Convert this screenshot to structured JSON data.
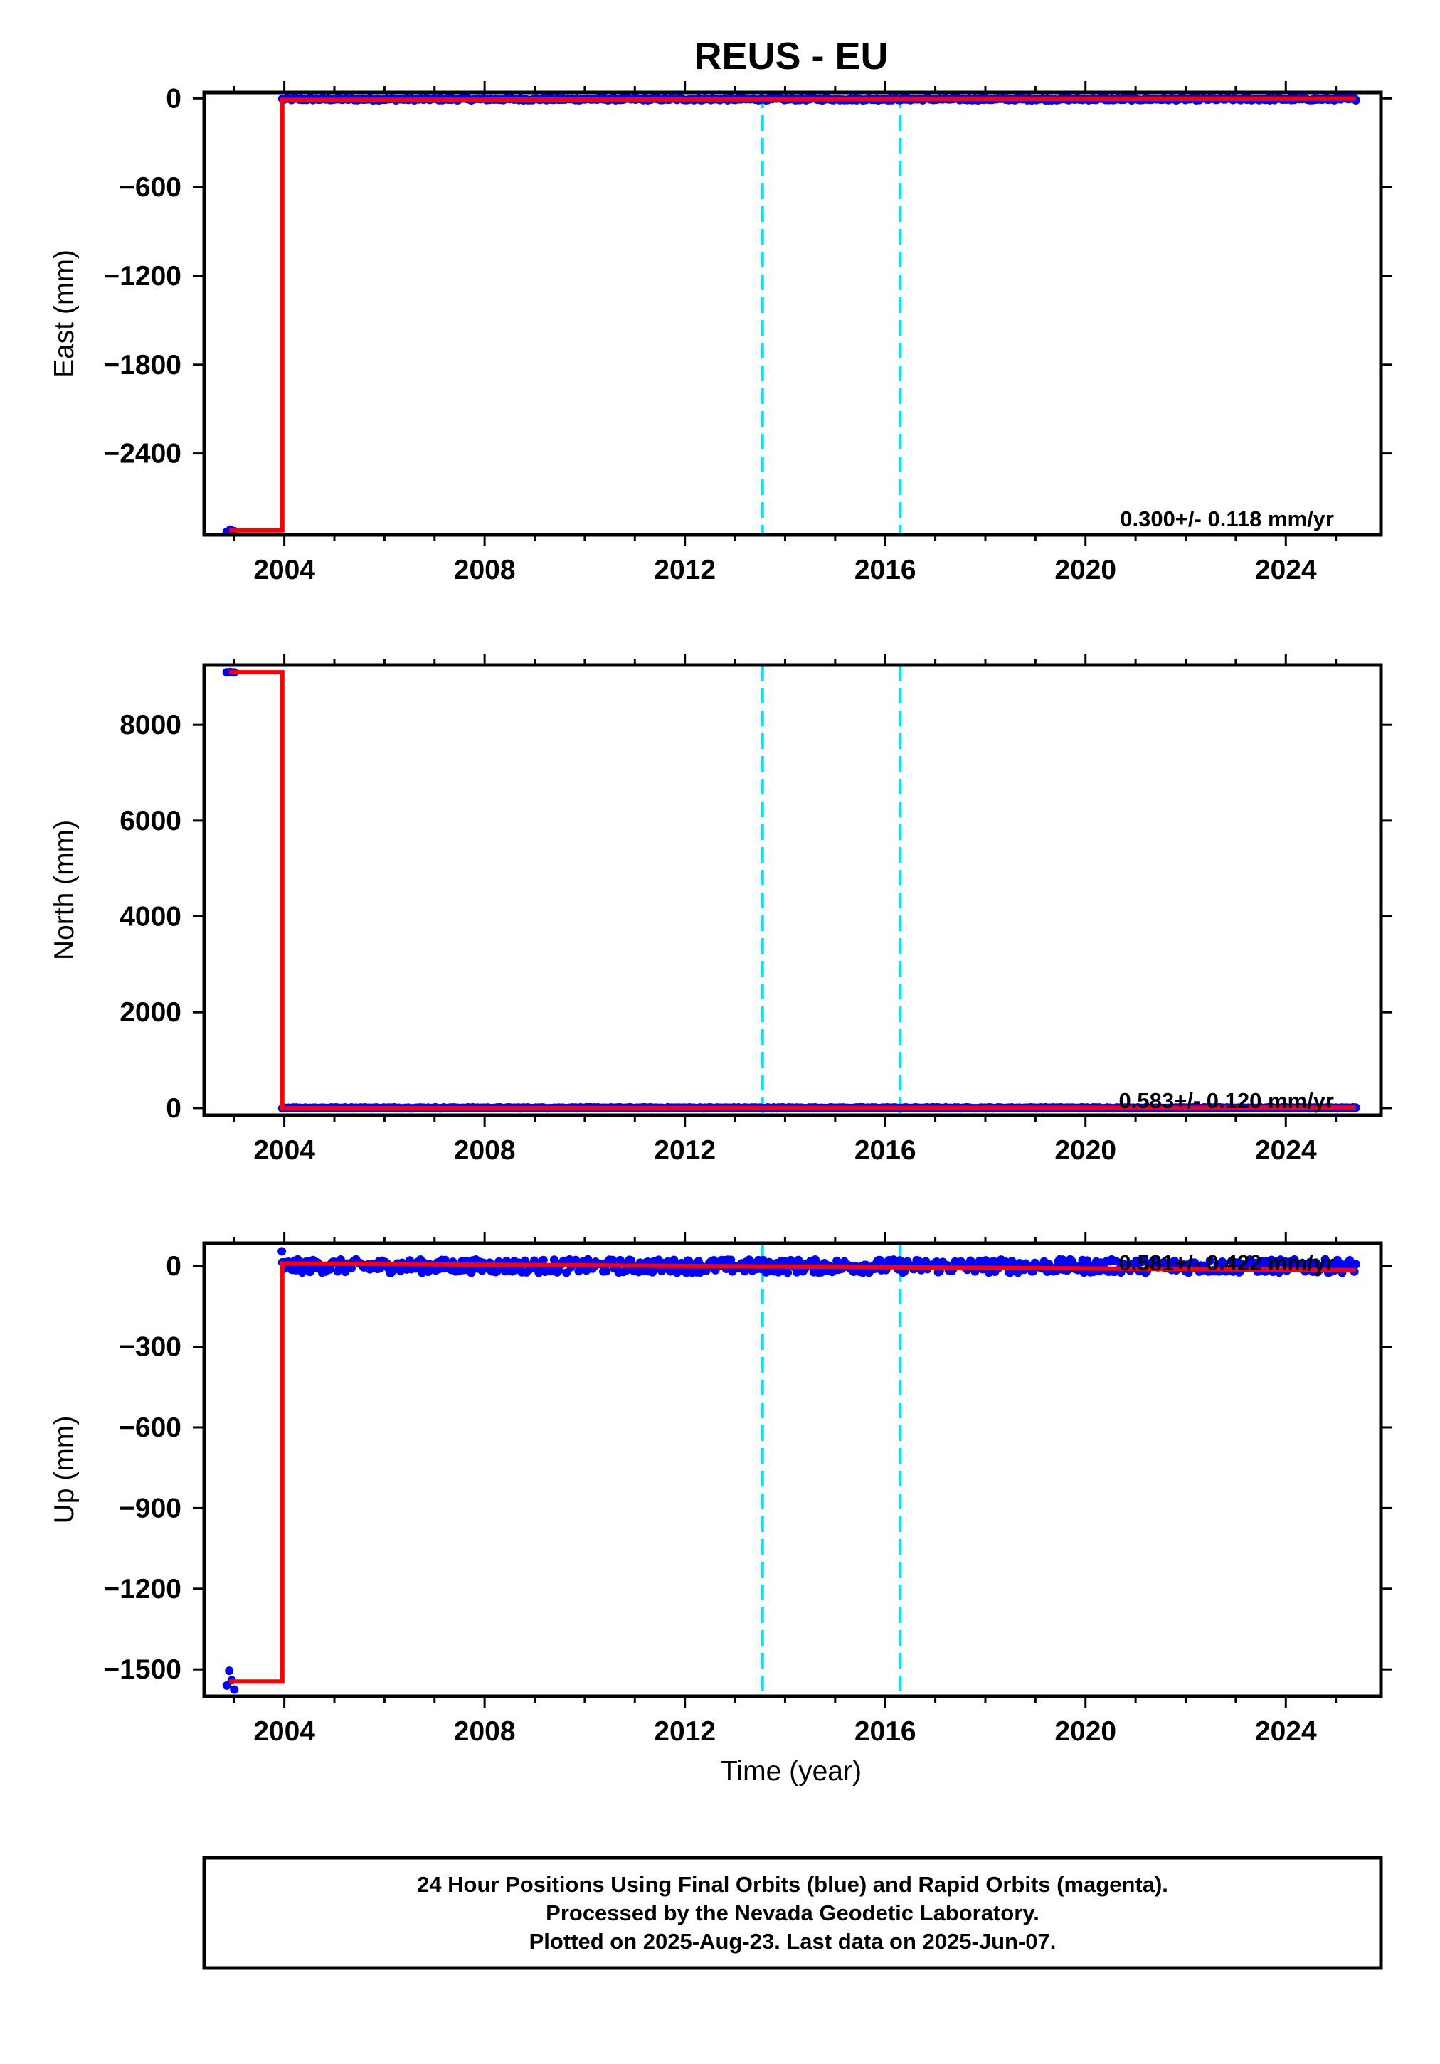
{
  "chart_data": {
    "type": "scatter",
    "title": "REUS - EU",
    "xlabel": "Time (year)",
    "x_ticks": [
      "2004",
      "2008",
      "2012",
      "2016",
      "2020",
      "2024"
    ],
    "xlim": [
      2002.4,
      2025.9
    ],
    "vertical_lines": [
      2013.55,
      2016.3
    ],
    "colors": {
      "final_orbits": "#0000ff",
      "rapid_orbits": "#ff00ff",
      "model": "#ff0000",
      "offset_lines": "#00e5ff"
    },
    "grid": false,
    "panels": [
      {
        "ylabel": "East (mm)",
        "ylim": [
          -2950,
          40
        ],
        "y_ticks": [
          0,
          -600,
          -1200,
          -1800,
          -2400
        ],
        "y_tick_labels": [
          "0",
          "−600",
          "−1200",
          "−1800",
          "−2400"
        ],
        "rate_text": "0.300+/- 0.118 mm/yr",
        "model_line": {
          "x": [
            2002.9,
            2003.96,
            2003.96,
            2025.4
          ],
          "y": [
            -2920,
            -2920,
            -10,
            -2
          ]
        },
        "series": [
          {
            "color": "blue",
            "x": [
              2002.85,
              2002.92,
              2003.0
            ],
            "y": [
              -2930,
              -2915,
              -2925
            ]
          },
          {
            "color": "blue",
            "x_range": [
              2003.96,
              2025.4
            ],
            "y_mean": -5,
            "y_spread": 8
          }
        ]
      },
      {
        "ylabel": "North (mm)",
        "ylim": [
          -150,
          9250
        ],
        "y_ticks": [
          0,
          2000,
          4000,
          6000,
          8000
        ],
        "y_tick_labels": [
          "0",
          "2000",
          "4000",
          "6000",
          "8000"
        ],
        "rate_text": "0.583+/- 0.120 mm/yr",
        "model_line": {
          "x": [
            2002.9,
            2003.96,
            2003.96,
            2025.4
          ],
          "y": [
            9100,
            9100,
            0,
            8
          ]
        },
        "series": [
          {
            "color": "blue",
            "x": [
              2002.85,
              2002.92,
              2003.0
            ],
            "y": [
              9100,
              9105,
              9098
            ]
          },
          {
            "color": "blue",
            "x_range": [
              2003.96,
              2025.4
            ],
            "y_mean": 5,
            "y_spread": 10
          }
        ]
      },
      {
        "ylabel": "Up (mm)",
        "ylim": [
          -1600,
          85
        ],
        "y_ticks": [
          0,
          -300,
          -600,
          -900,
          -1200,
          -1500
        ],
        "y_tick_labels": [
          "0",
          "−300",
          "−600",
          "−900",
          "−1200",
          "−1500"
        ],
        "rate_text": "0.581+/- 0.422 mm/yr",
        "model_line": {
          "x": [
            2002.9,
            2003.96,
            2003.96,
            2025.4
          ],
          "y": [
            -1545,
            -1545,
            10,
            -15
          ]
        },
        "series": [
          {
            "color": "blue",
            "x": [
              2002.85,
              2002.9,
              2002.95,
              2003.0
            ],
            "y": [
              -1560,
              -1505,
              -1540,
              -1575
            ]
          },
          {
            "color": "blue",
            "x": [
              2003.95
            ],
            "y": [
              55
            ]
          },
          {
            "color": "blue",
            "x_range": [
              2003.96,
              2025.4
            ],
            "y_mean": 0,
            "y_spread": 25
          }
        ]
      }
    ]
  },
  "caption": {
    "line1": "24 Hour Positions Using Final Orbits (blue) and Rapid Orbits (magenta).",
    "line2": "Processed by the Nevada Geodetic Laboratory.",
    "line3": "Plotted on 2025-Aug-23. Last data on 2025-Jun-07."
  }
}
